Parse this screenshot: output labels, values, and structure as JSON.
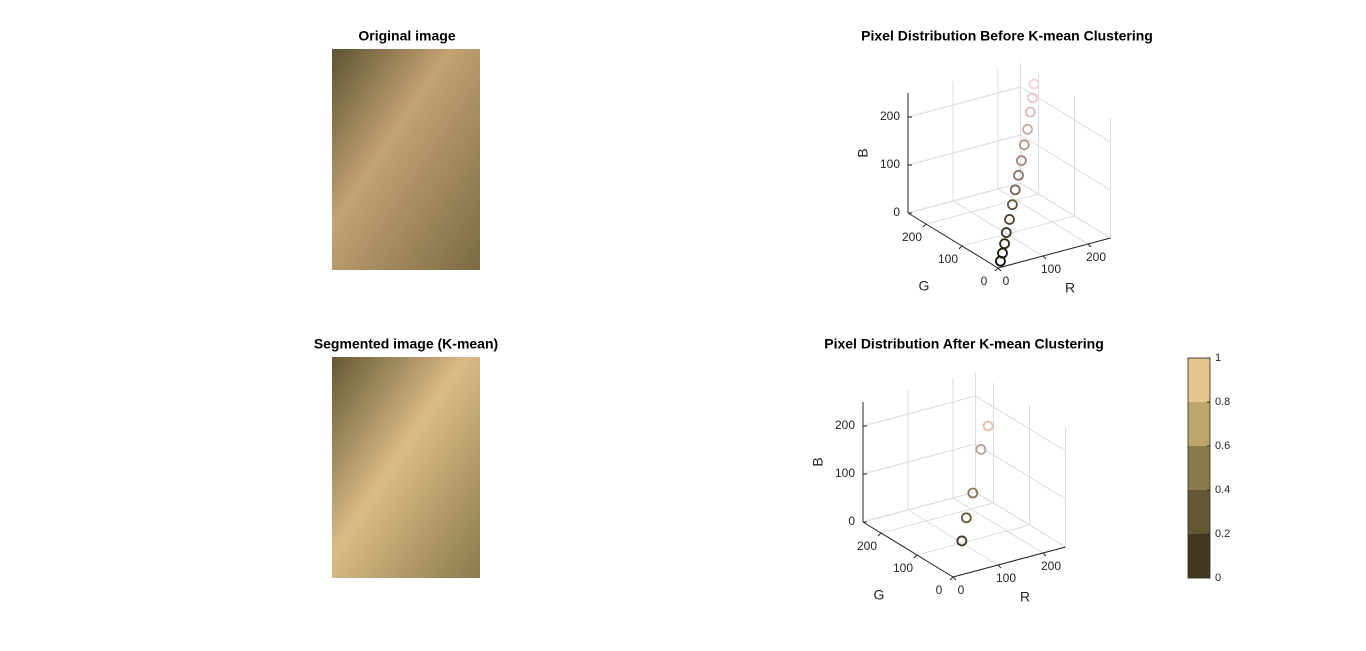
{
  "chart_data": [
    {
      "type": "image",
      "title": "Original image"
    },
    {
      "type": "scatter3",
      "title": "Pixel Distribution Before K-mean Clustering",
      "xlabel": "R",
      "ylabel": "G",
      "zlabel": "B",
      "xlim": [
        0,
        250
      ],
      "ylim": [
        0,
        250
      ],
      "zlim": [
        0,
        250
      ],
      "xticks": [
        0,
        100,
        200
      ],
      "yticks": [
        0,
        100,
        200
      ],
      "zticks": [
        0,
        100,
        200
      ],
      "grid": true,
      "x": [
        15,
        30,
        45,
        60,
        80,
        100,
        120,
        140,
        160,
        180,
        200,
        220,
        235,
        248
      ],
      "y": [
        12,
        25,
        38,
        52,
        68,
        85,
        102,
        118,
        135,
        152,
        168,
        185,
        198,
        210
      ],
      "z": [
        5,
        12,
        22,
        35,
        50,
        68,
        86,
        104,
        122,
        142,
        162,
        185,
        205,
        225
      ]
    },
    {
      "type": "image",
      "title": "Segmented image (K-mean)"
    },
    {
      "type": "scatter3",
      "title": "Pixel Distribution After K-mean Clustering",
      "xlabel": "R",
      "ylabel": "G",
      "zlabel": "B",
      "xlim": [
        0,
        250
      ],
      "ylim": [
        0,
        250
      ],
      "zlim": [
        0,
        250
      ],
      "xticks": [
        0,
        100,
        200
      ],
      "yticks": [
        0,
        100,
        200
      ],
      "zticks": [
        0,
        100,
        200
      ],
      "grid": true,
      "x": [
        66,
        100,
        140,
        190,
        230
      ],
      "y": [
        58,
        88,
        120,
        160,
        190
      ],
      "z": [
        32,
        58,
        85,
        145,
        170
      ]
    },
    {
      "type": "colorbar",
      "ylim": [
        0,
        1
      ],
      "yticks": [
        0,
        0.2,
        0.4,
        0.6,
        0.8,
        1
      ],
      "colors": [
        "#423a20",
        "#645834",
        "#8c7a4b",
        "#bea569",
        "#e4c38c"
      ]
    }
  ]
}
